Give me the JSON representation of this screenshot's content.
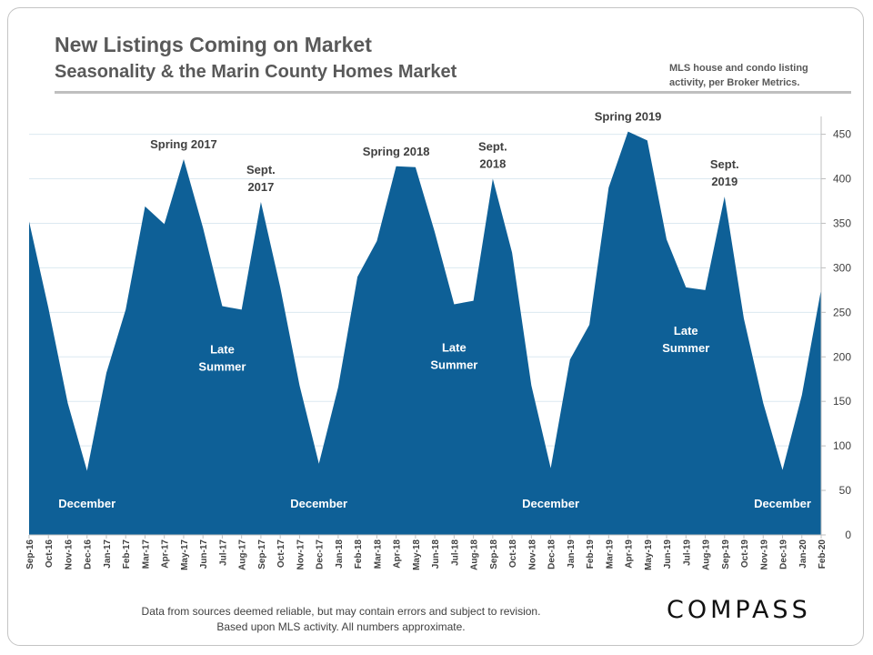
{
  "header": {
    "title": "New Listings Coming on Market",
    "subtitle": "Seasonality & the Marin County Homes Market",
    "source_note": "MLS house and condo listing activity, per Broker Metrics."
  },
  "footer": {
    "line1": "Data from sources deemed reliable, but may contain errors and subject to revision.",
    "line2": "Based upon MLS activity. All numbers approximate."
  },
  "logo": "COMPASS",
  "colors": {
    "area": "#0e6097",
    "label_dark": "#404040",
    "label_light": "#ffffff",
    "grid": "#dce9f1"
  },
  "chart_data": {
    "type": "area",
    "title": "New Listings Coming on Market",
    "categories": [
      "Sep-16",
      "Oct-16",
      "Nov-16",
      "Dec-16",
      "Jan-17",
      "Feb-17",
      "Mar-17",
      "Apr-17",
      "May-17",
      "Jun-17",
      "Jul-17",
      "Aug-17",
      "Sep-17",
      "Oct-17",
      "Nov-17",
      "Dec-17",
      "Jan-18",
      "Feb-18",
      "Mar-18",
      "Apr-18",
      "May-18",
      "Jun-18",
      "Jul-18",
      "Aug-18",
      "Sep-18",
      "Oct-18",
      "Nov-18",
      "Dec-18",
      "Jan-19",
      "Feb-19",
      "Mar-19",
      "Apr-19",
      "May-19",
      "Jun-19",
      "Jul-19",
      "Aug-19",
      "Sep-19",
      "Oct-19",
      "Nov-19",
      "Dec-19",
      "Jan-20",
      "Feb-20"
    ],
    "values": [
      352,
      255,
      148,
      72,
      182,
      253,
      369,
      349,
      422,
      345,
      257,
      253,
      374,
      278,
      168,
      80,
      166,
      290,
      330,
      414,
      413,
      340,
      259,
      263,
      400,
      317,
      168,
      75,
      197,
      236,
      390,
      453,
      443,
      332,
      278,
      275,
      380,
      243,
      148,
      73,
      157,
      276
    ],
    "ylim": [
      0,
      470
    ],
    "yticks": [
      0,
      50,
      100,
      150,
      200,
      250,
      300,
      350,
      400,
      450
    ],
    "y_axis_side": "right",
    "grid": true,
    "annotations": [
      {
        "lines": [
          "Spring 2017"
        ],
        "at": "May-17",
        "style": "dark"
      },
      {
        "lines": [
          "Sept.",
          "2017"
        ],
        "at": "Sep-17",
        "style": "dark"
      },
      {
        "lines": [
          "Spring 2018"
        ],
        "at": "Apr-18",
        "style": "dark"
      },
      {
        "lines": [
          "Sept.",
          "2018"
        ],
        "at": "Sep-18",
        "style": "dark"
      },
      {
        "lines": [
          "Spring 2019"
        ],
        "at": "Apr-19",
        "style": "dark"
      },
      {
        "lines": [
          "Sept.",
          "2019"
        ],
        "at": "Sep-19",
        "style": "dark"
      },
      {
        "lines": [
          "Late",
          "Summer"
        ],
        "at": "Jul-17",
        "style": "light"
      },
      {
        "lines": [
          "Late",
          "Summer"
        ],
        "at": "Jul-18",
        "style": "light"
      },
      {
        "lines": [
          "Late",
          "Summer"
        ],
        "at": "Jul-19",
        "style": "light"
      },
      {
        "lines": [
          "December"
        ],
        "at": "Dec-16",
        "style": "light"
      },
      {
        "lines": [
          "December"
        ],
        "at": "Dec-17",
        "style": "light"
      },
      {
        "lines": [
          "December"
        ],
        "at": "Dec-18",
        "style": "light"
      },
      {
        "lines": [
          "December"
        ],
        "at": "Dec-19",
        "style": "light"
      }
    ]
  }
}
